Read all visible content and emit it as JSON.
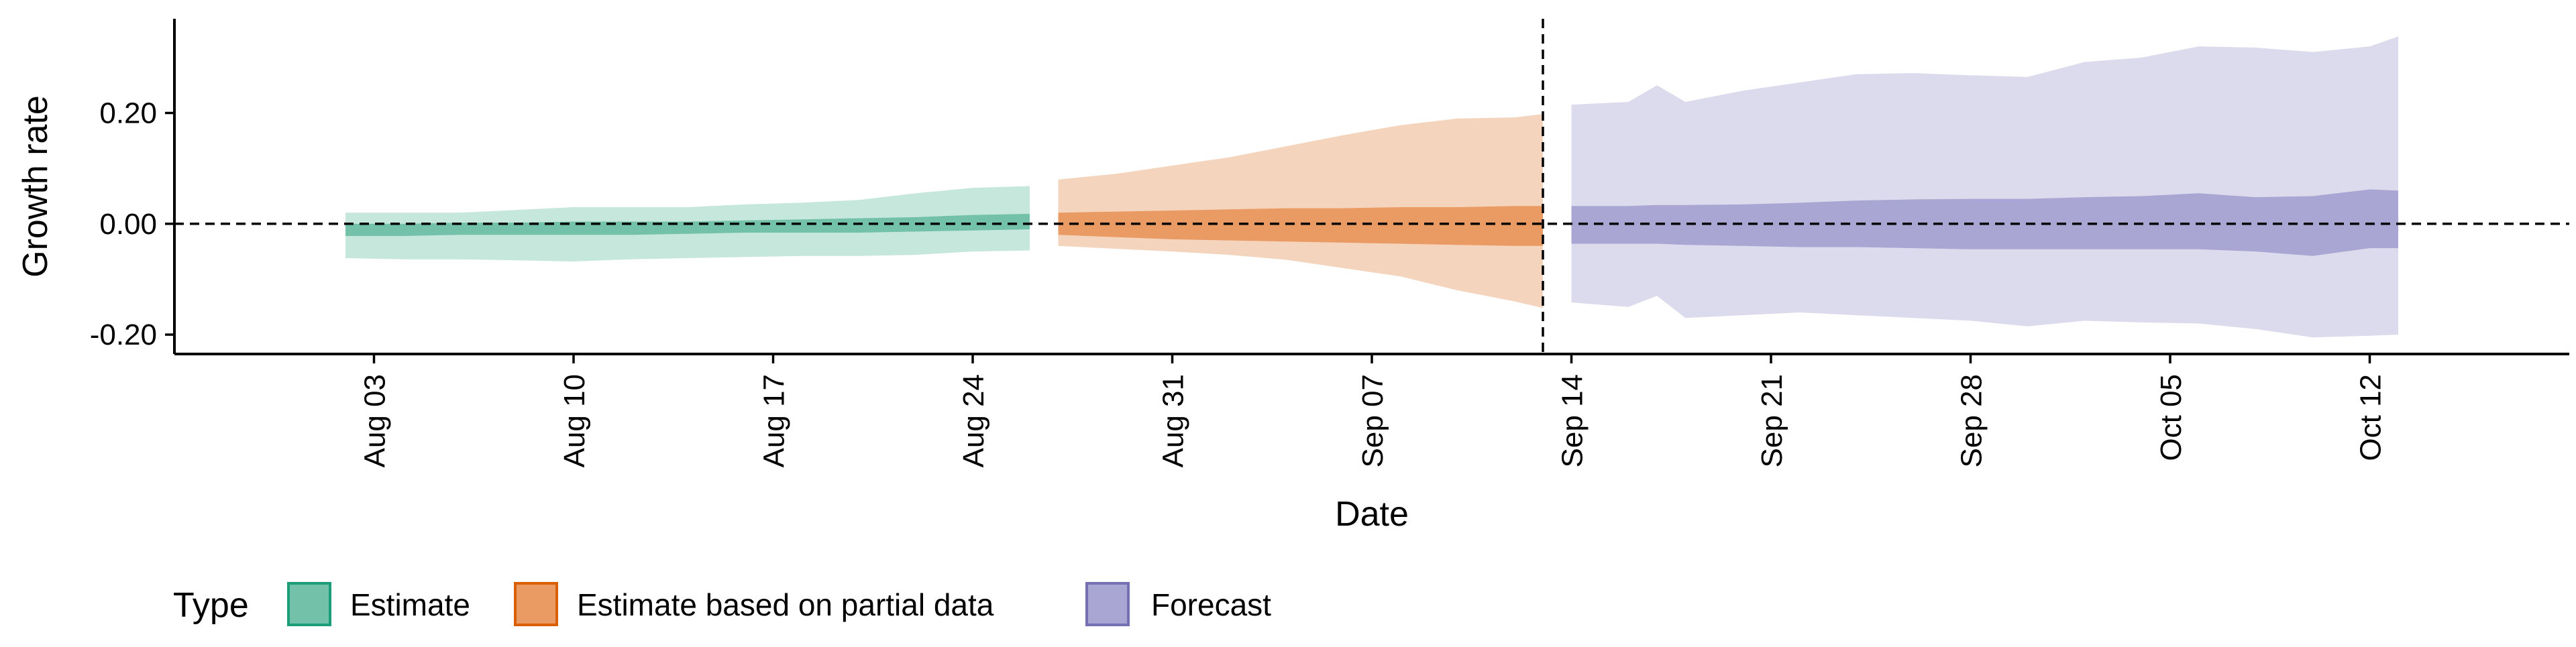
{
  "chart_data": {
    "type": "area",
    "title": "",
    "xlabel": "Date",
    "ylabel": "Growth rate",
    "ylim": [
      -0.235,
      0.37
    ],
    "y_ticks": [
      -0.2,
      0.0,
      0.2
    ],
    "y_tick_labels": [
      "-0.20",
      "0.00",
      "0.20"
    ],
    "xlim": [
      "2020-07-27",
      "2020-10-19"
    ],
    "x_ticks": [
      "2020-08-03",
      "2020-08-10",
      "2020-08-17",
      "2020-08-24",
      "2020-08-31",
      "2020-09-07",
      "2020-09-14",
      "2020-09-21",
      "2020-09-28",
      "2020-10-05",
      "2020-10-12"
    ],
    "x_tick_labels": [
      "Aug 03",
      "Aug 10",
      "Aug 17",
      "Aug 24",
      "Aug 31",
      "Sep 07",
      "Sep 14",
      "Sep 21",
      "Sep 28",
      "Oct 05",
      "Oct 12"
    ],
    "grid": false,
    "hline": 0.0,
    "vline": "2020-09-13",
    "legend": {
      "title": "Type",
      "position": "bottom-left",
      "entries": [
        {
          "label": "Estimate",
          "fill": "#72c1a8",
          "border": "#1b9e77"
        },
        {
          "label": "Estimate based on partial data",
          "fill": "#e99b63",
          "border": "#d95f02"
        },
        {
          "label": "Forecast",
          "fill": "#a9a6d4",
          "border": "#7570b3"
        }
      ]
    },
    "series": [
      {
        "name": "Estimate",
        "outer_color": "#c6e7dc",
        "inner_color": "#72c1a8",
        "x": [
          "2020-08-02",
          "2020-08-04",
          "2020-08-06",
          "2020-08-08",
          "2020-08-10",
          "2020-08-12",
          "2020-08-14",
          "2020-08-16",
          "2020-08-18",
          "2020-08-20",
          "2020-08-22",
          "2020-08-24",
          "2020-08-26"
        ],
        "outer_upper": [
          0.02,
          0.02,
          0.02,
          0.025,
          0.03,
          0.03,
          0.03,
          0.035,
          0.038,
          0.043,
          0.055,
          0.065,
          0.068
        ],
        "outer_lower": [
          -0.062,
          -0.064,
          -0.064,
          -0.066,
          -0.068,
          -0.064,
          -0.062,
          -0.06,
          -0.058,
          -0.058,
          -0.056,
          -0.05,
          -0.048
        ],
        "inner_upper": [
          0.0,
          0.0,
          0.002,
          0.002,
          0.004,
          0.004,
          0.004,
          0.006,
          0.008,
          0.01,
          0.012,
          0.016,
          0.018
        ],
        "inner_lower": [
          -0.022,
          -0.022,
          -0.02,
          -0.02,
          -0.02,
          -0.02,
          -0.018,
          -0.016,
          -0.016,
          -0.016,
          -0.014,
          -0.012,
          -0.01
        ]
      },
      {
        "name": "Estimate based on partial data",
        "outer_color": "#f5d4bd",
        "inner_color": "#e99b63",
        "x": [
          "2020-08-27",
          "2020-08-29",
          "2020-08-31",
          "2020-09-02",
          "2020-09-04",
          "2020-09-06",
          "2020-09-08",
          "2020-09-10",
          "2020-09-12",
          "2020-09-13"
        ],
        "outer_upper": [
          0.08,
          0.09,
          0.105,
          0.12,
          0.14,
          0.16,
          0.178,
          0.19,
          0.192,
          0.198
        ],
        "outer_lower": [
          -0.04,
          -0.045,
          -0.05,
          -0.056,
          -0.065,
          -0.08,
          -0.095,
          -0.12,
          -0.14,
          -0.152
        ],
        "inner_upper": [
          0.02,
          0.022,
          0.024,
          0.026,
          0.028,
          0.028,
          0.03,
          0.03,
          0.032,
          0.032
        ],
        "inner_lower": [
          -0.02,
          -0.024,
          -0.028,
          -0.03,
          -0.032,
          -0.034,
          -0.036,
          -0.038,
          -0.04,
          -0.04
        ]
      },
      {
        "name": "Forecast",
        "outer_color": "#dcdaed",
        "inner_color": "#a9a6d4",
        "x": [
          "2020-09-14",
          "2020-09-16",
          "2020-09-17",
          "2020-09-18",
          "2020-09-20",
          "2020-09-22",
          "2020-09-24",
          "2020-09-26",
          "2020-09-28",
          "2020-09-30",
          "2020-10-02",
          "2020-10-04",
          "2020-10-06",
          "2020-10-08",
          "2020-10-10",
          "2020-10-12",
          "2020-10-13"
        ],
        "outer_upper": [
          0.215,
          0.22,
          0.25,
          0.22,
          0.24,
          0.255,
          0.27,
          0.272,
          0.268,
          0.265,
          0.292,
          0.3,
          0.32,
          0.318,
          0.31,
          0.32,
          0.338
        ],
        "outer_lower": [
          -0.142,
          -0.15,
          -0.13,
          -0.17,
          -0.165,
          -0.16,
          -0.165,
          -0.17,
          -0.175,
          -0.185,
          -0.175,
          -0.178,
          -0.18,
          -0.19,
          -0.205,
          -0.202,
          -0.2
        ],
        "inner_upper": [
          0.032,
          0.032,
          0.034,
          0.034,
          0.035,
          0.038,
          0.042,
          0.044,
          0.045,
          0.045,
          0.048,
          0.05,
          0.055,
          0.048,
          0.05,
          0.062,
          0.06
        ],
        "inner_lower": [
          -0.036,
          -0.036,
          -0.036,
          -0.038,
          -0.04,
          -0.042,
          -0.042,
          -0.044,
          -0.046,
          -0.046,
          -0.046,
          -0.046,
          -0.046,
          -0.05,
          -0.058,
          -0.044,
          -0.044
        ]
      }
    ]
  }
}
